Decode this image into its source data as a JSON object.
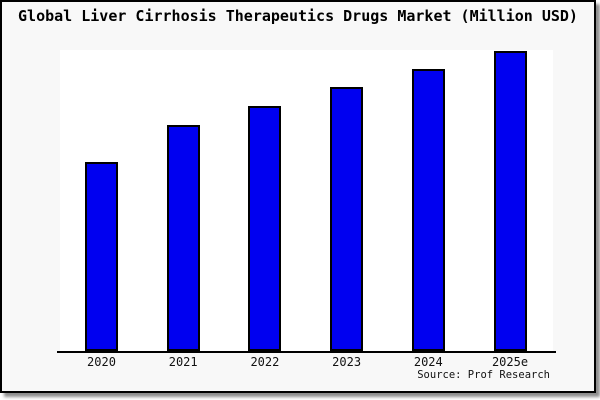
{
  "title": "Global Liver Cirrhosis Therapeutics Drugs Market (Million USD)",
  "source": "Source: Prof Research",
  "colors": {
    "bar_fill": "#0000f0",
    "bar_border": "#000000",
    "canvas_bg": "#f8f8f8",
    "plot_bg": "#ffffff",
    "axis": "#000000",
    "frame_border": "#000000"
  },
  "chart_data": {
    "type": "bar",
    "title": "Global Liver Cirrhosis Therapeutics Drugs Market (Million USD)",
    "categories": [
      "2020",
      "2021",
      "2022",
      "2023",
      "2024",
      "2025e"
    ],
    "values": [
      63,
      75.5,
      81.7,
      88,
      94,
      100
    ],
    "value_note": "No y-axis ticks or data labels shown; values are relative bar heights as % of the tallest bar (2025e = 100)",
    "xlabel": "",
    "ylabel": "",
    "ylim": [
      0,
      100
    ],
    "grid": false,
    "legend": null,
    "annotations": [
      "Source: Prof Research"
    ]
  }
}
